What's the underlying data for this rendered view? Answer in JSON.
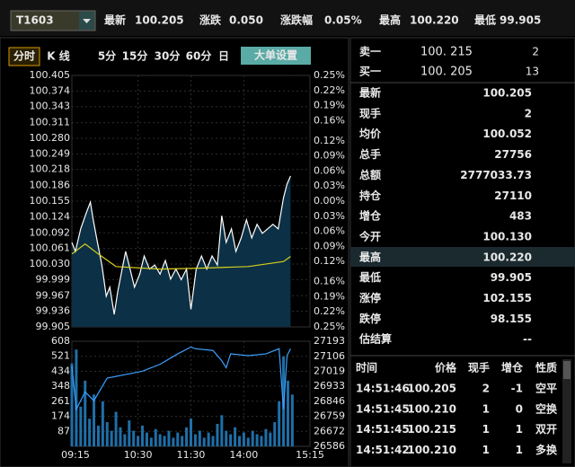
{
  "header": {
    "symbol": "T1603",
    "quotes": [
      {
        "label": "最新",
        "value": "100.205"
      },
      {
        "label": "涨跌",
        "value": "0.050"
      },
      {
        "label": "涨跌幅",
        "value": "0.05%"
      },
      {
        "label": "最高",
        "value": "100.220"
      },
      {
        "label": "最低",
        "value": "99.905"
      }
    ]
  },
  "toolbar": {
    "tabs": [
      "分时",
      "K 线",
      "5分",
      "15分",
      "30分",
      "60分",
      "日"
    ],
    "button": "大单设置"
  },
  "chart_data": [
    {
      "type": "line",
      "xlim": [
        0,
        270
      ],
      "ylim": [
        99.905,
        100.405
      ],
      "yticks": [
        100.405,
        100.374,
        100.343,
        100.311,
        {
          "value": 100.28,
          "label": "100.280"
        },
        100.249,
        100.218,
        100.186,
        100.155,
        100.124,
        100.092,
        100.061,
        {
          "value": 100.03,
          "label": "100.030"
        },
        99.999,
        99.967,
        99.936,
        99.905
      ],
      "y2lim": [
        -0.25,
        0.25
      ],
      "y2ticks": [
        {
          "value": 0.25,
          "label": "0.25%"
        },
        {
          "value": 0.22,
          "label": "0.22%"
        },
        {
          "value": 0.19,
          "label": "0.19%"
        },
        {
          "value": 0.16,
          "label": "0.16%"
        },
        {
          "value": 0.12,
          "label": "0.12%"
        },
        {
          "value": 0.09,
          "label": "0.09%"
        },
        {
          "value": 0.06,
          "label": "0.06%"
        },
        {
          "value": 0.03,
          "label": "0.03%"
        },
        {
          "value": 0,
          "label": "0.00%"
        },
        {
          "value": -0.03,
          "label": "0.03%"
        },
        {
          "value": -0.06,
          "label": "0.06%"
        },
        {
          "value": -0.09,
          "label": "0.09%"
        },
        {
          "value": -0.12,
          "label": "0.12%"
        },
        {
          "value": -0.16,
          "label": "0.16%"
        },
        {
          "value": -0.19,
          "label": "0.19%"
        },
        {
          "value": -0.22,
          "label": "0.22%"
        },
        {
          "value": -0.25,
          "label": "0.25%"
        }
      ],
      "grid": true,
      "axis_colors": {
        "up": "#ff3c3c",
        "flat": "#e8e8e8",
        "down": "#6fd13a"
      },
      "series": [
        {
          "color": "#ffffff",
          "fill": "#0c3045",
          "x": [
            0,
            4,
            10,
            17,
            21,
            24,
            29,
            34,
            39,
            43,
            48,
            52,
            57,
            61,
            66,
            71,
            77,
            82,
            88,
            94,
            100,
            106,
            112,
            118,
            124,
            130,
            135,
            141,
            147,
            153,
            159,
            165,
            170,
            175,
            181,
            186,
            192,
            198,
            204,
            210,
            216,
            222,
            228,
            234,
            240,
            244,
            248
          ],
          "values": [
            100.073,
            100.055,
            100.1,
            100.135,
            100.153,
            100.12,
            100.073,
            100.028,
            99.966,
            99.984,
            99.93,
            99.975,
            100.02,
            100.055,
            100.02,
            99.984,
            100.01,
            100.046,
            100.02,
            100.028,
            100.01,
            100.037,
            100.0,
            100.02,
            99.999,
            100.02,
            99.94,
            100.02,
            100.046,
            100.02,
            100.046,
            100.028,
            100.126,
            100.073,
            100.1,
            100.055,
            100.082,
            100.118,
            100.082,
            100.109,
            100.091,
            100.1,
            100.109,
            100.1,
            100.162,
            100.189,
            100.205
          ]
        },
        {
          "color": "#d8d020",
          "x": [
            0,
            15,
            30,
            50,
            100,
            150,
            200,
            240,
            248
          ],
          "values": [
            100.05,
            100.07,
            100.05,
            100.025,
            100.02,
            100.022,
            100.025,
            100.035,
            100.045
          ]
        }
      ]
    },
    {
      "type": "bar",
      "xlim": [
        0,
        270
      ],
      "xticks": [
        {
          "value": 0,
          "label": "09:15"
        },
        {
          "value": 75,
          "label": "10:30"
        },
        {
          "value": 135,
          "label": "11:30"
        },
        {
          "value": 195,
          "label": "14:00"
        },
        {
          "value": 270,
          "label": "15:15"
        }
      ],
      "ylim": [
        0,
        608
      ],
      "yticks": [
        608,
        521,
        434,
        348,
        261,
        174,
        87
      ],
      "y2lim": [
        26586,
        27193
      ],
      "y2ticks": [
        27193,
        27106,
        27019,
        26933,
        26846,
        26759,
        26672,
        26586
      ],
      "grid": true,
      "label_color": "#e8e8e8",
      "series": [
        {
          "type": "bar",
          "color": "#1f6fa8",
          "x": [
            0,
            5,
            10,
            15,
            20,
            25,
            30,
            35,
            40,
            45,
            50,
            55,
            60,
            65,
            70,
            75,
            80,
            85,
            90,
            95,
            100,
            105,
            110,
            115,
            120,
            125,
            130,
            135,
            140,
            145,
            150,
            155,
            160,
            165,
            170,
            175,
            180,
            185,
            190,
            195,
            200,
            205,
            210,
            215,
            220,
            225,
            230,
            235,
            240,
            245,
            250
          ],
          "values": [
            480,
            560,
            230,
            380,
            160,
            300,
            120,
            260,
            140,
            90,
            200,
            110,
            70,
            150,
            90,
            60,
            120,
            80,
            50,
            100,
            70,
            60,
            90,
            50,
            80,
            60,
            110,
            160,
            70,
            90,
            50,
            80,
            60,
            130,
            180,
            90,
            70,
            110,
            60,
            80,
            50,
            90,
            70,
            60,
            100,
            80,
            140,
            260,
            520,
            380,
            300
          ]
        },
        {
          "type": "line",
          "axis": "y2",
          "color": "#3aa0ff",
          "x": [
            0,
            5,
            15,
            25,
            40,
            60,
            80,
            100,
            120,
            135,
            140,
            160,
            170,
            175,
            180,
            200,
            220,
            235,
            240,
            244,
            248
          ],
          "values": [
            27050,
            26800,
            26900,
            26850,
            26980,
            27000,
            27020,
            27060,
            27120,
            27160,
            27150,
            27140,
            27080,
            27040,
            27120,
            27110,
            27120,
            27150,
            26800,
            27110,
            27150
          ]
        }
      ]
    }
  ],
  "order_book": [
    {
      "label": "卖一",
      "price": "100. 215",
      "volume": "2"
    },
    {
      "label": "买一",
      "price": "100. 205",
      "volume": "13"
    }
  ],
  "stats": [
    {
      "label": "最新",
      "value": "100.205",
      "color": "#ff3c3c"
    },
    {
      "label": "现手",
      "value": "2",
      "color": "#ffffff"
    },
    {
      "label": "均价",
      "value": "100.052",
      "color": "#6fd13a"
    },
    {
      "label": "总手",
      "value": "27756",
      "color": "#ffffff"
    },
    {
      "label": "总额",
      "value": "2777033.73",
      "color": "#ffffff"
    },
    {
      "label": "持仓",
      "value": "27110",
      "color": "#ffffff"
    },
    {
      "label": "增仓",
      "value": "483",
      "color": "#ffffff"
    },
    {
      "label": "今开",
      "value": "100.130",
      "color": "#6fd13a"
    },
    {
      "label": "最高",
      "value": "100.220",
      "color": "#ff3c3c"
    },
    {
      "label": "最低",
      "value": "99.905",
      "color": "#6fd13a"
    },
    {
      "label": "涨停",
      "value": "102.155",
      "color": "#ff3c3c"
    },
    {
      "label": "跌停",
      "value": "98.155",
      "color": "#6fd13a"
    },
    {
      "label": "估结算",
      "value": "--",
      "color": "#ffffff"
    }
  ],
  "trades": {
    "columns": [
      "时间",
      "价格",
      "现手",
      "增仓",
      "性质"
    ],
    "rows": [
      {
        "cells": [
          "14:51:46",
          "100.205",
          "2",
          "-1",
          "空平"
        ],
        "colors": [
          "#ffffff",
          "#ff3c3c",
          "#ff3c3c",
          "#ff3c3c",
          "#ff3c3c"
        ]
      },
      {
        "cells": [
          "14:51:45",
          "100.210",
          "1",
          "0",
          "空换"
        ],
        "colors": [
          "#ffffff",
          "#ff3c3c",
          "#6fd13a",
          "#ffffff",
          "#6fd13a"
        ]
      },
      {
        "cells": [
          "14:51:45",
          "100.215",
          "1",
          "1",
          "双开"
        ],
        "colors": [
          "#ffffff",
          "#ff3c3c",
          "#ff3c3c",
          "#ff3c3c",
          "#ff3c3c"
        ]
      },
      {
        "cells": [
          "14:51:42",
          "100.210",
          "1",
          "1",
          "多换"
        ],
        "colors": [
          "#ffffff",
          "#ff3c3c",
          "#ff3c3c",
          "#ff3c3c",
          "#ff3c3c"
        ]
      }
    ]
  }
}
